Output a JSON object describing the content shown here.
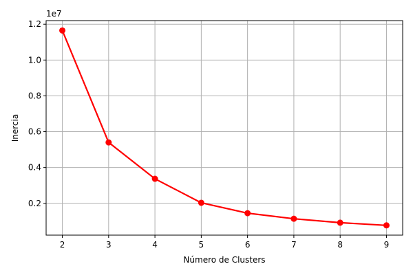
{
  "chart_data": {
    "type": "line",
    "title": "",
    "xlabel": "Número de Clusters",
    "ylabel": "Inercia",
    "y_offset_label": "1e7",
    "x": [
      2,
      3,
      4,
      5,
      6,
      7,
      8,
      9
    ],
    "series": [
      {
        "values": [
          11650000,
          5400000,
          3370000,
          2030000,
          1450000,
          1140000,
          920000,
          770000
        ],
        "color": "#ff0000",
        "marker": "circle"
      }
    ],
    "xlim": [
      1.65,
      9.35
    ],
    "ylim": [
      225000,
      12200000
    ],
    "xticks": [
      2,
      3,
      4,
      5,
      6,
      7,
      8,
      9
    ],
    "yticks": [
      {
        "value": 2000000,
        "label": "0.2"
      },
      {
        "value": 4000000,
        "label": "0.4"
      },
      {
        "value": 6000000,
        "label": "0.6"
      },
      {
        "value": 8000000,
        "label": "0.8"
      },
      {
        "value": 10000000,
        "label": "1.0"
      },
      {
        "value": 12000000,
        "label": "1.2"
      }
    ],
    "grid": true
  }
}
